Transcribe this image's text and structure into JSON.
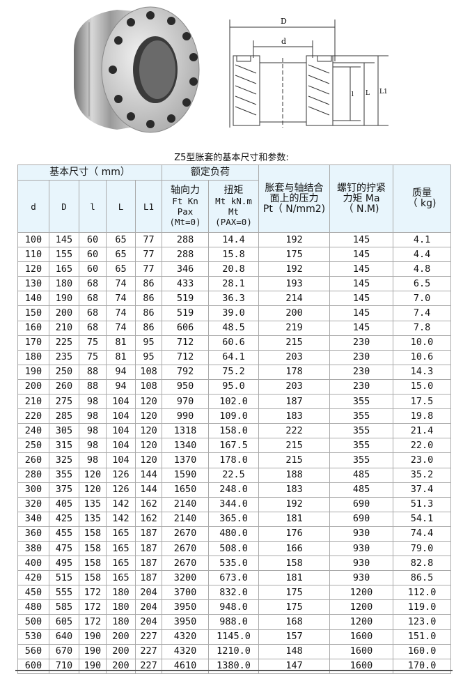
{
  "title": "Z5型胀套的基本尺寸和参数:",
  "drawing_labels": {
    "D": "D",
    "d": "d",
    "l": "l",
    "L": "L",
    "L1": "L1"
  },
  "header": {
    "group_basic": "基本尺寸（ mm）",
    "group_load": "额定负荷",
    "d": "d",
    "D": "D",
    "l": "l",
    "L": "L",
    "L1": "L1",
    "axial_force": [
      "轴向力",
      "Ft Kn",
      "Pax",
      "(Mt=0)"
    ],
    "torque": [
      "扭矩",
      "Mt kN.m",
      "Mt",
      "(PAX=0)"
    ],
    "pressure": [
      "胀套与轴结合",
      "面上的压力",
      "Pt（ N/mm2)"
    ],
    "bolt_torque": [
      "螺钉的拧紧",
      "力矩 Ma",
      "（ N.M)"
    ],
    "mass": [
      "质量",
      "（ kg)"
    ]
  },
  "rows": [
    [
      "100",
      "145",
      "60",
      "65",
      "77",
      "288",
      "14.4",
      "192",
      "145",
      "4.1"
    ],
    [
      "110",
      "155",
      "60",
      "65",
      "77",
      "288",
      "15.8",
      "175",
      "145",
      "4.4"
    ],
    [
      "120",
      "165",
      "60",
      "65",
      "77",
      "346",
      "20.8",
      "192",
      "145",
      "4.8"
    ],
    [
      "130",
      "180",
      "68",
      "74",
      "86",
      "433",
      "28.1",
      "193",
      "145",
      "6.5"
    ],
    [
      "140",
      "190",
      "68",
      "74",
      "86",
      "519",
      "36.3",
      "214",
      "145",
      "7.0"
    ],
    [
      "150",
      "200",
      "68",
      "74",
      "86",
      "519",
      "39.0",
      "200",
      "145",
      "7.4"
    ],
    [
      "160",
      "210",
      "68",
      "74",
      "86",
      "606",
      "48.5",
      "219",
      "145",
      "7.8"
    ],
    [
      "170",
      "225",
      "75",
      "81",
      "95",
      "712",
      "60.6",
      "215",
      "230",
      "10.0"
    ],
    [
      "180",
      "235",
      "75",
      "81",
      "95",
      "712",
      "64.1",
      "203",
      "230",
      "10.6"
    ],
    [
      "190",
      "250",
      "88",
      "94",
      "108",
      "792",
      "75.2",
      "178",
      "230",
      "14.3"
    ],
    [
      "200",
      "260",
      "88",
      "94",
      "108",
      "950",
      "95.0",
      "203",
      "230",
      "15.0"
    ],
    [
      "210",
      "275",
      "98",
      "104",
      "120",
      "970",
      "102.0",
      "187",
      "355",
      "17.5"
    ],
    [
      "220",
      "285",
      "98",
      "104",
      "120",
      "990",
      "109.0",
      "183",
      "355",
      "19.8"
    ],
    [
      "240",
      "305",
      "98",
      "104",
      "120",
      "1318",
      "158.0",
      "222",
      "355",
      "21.4"
    ],
    [
      "250",
      "315",
      "98",
      "104",
      "120",
      "1340",
      "167.5",
      "215",
      "355",
      "22.0"
    ],
    [
      "260",
      "325",
      "98",
      "104",
      "120",
      "1370",
      "178.0",
      "215",
      "355",
      "23.0"
    ],
    [
      "280",
      "355",
      "120",
      "126",
      "144",
      "1590",
      "22.5",
      "188",
      "485",
      "35.2"
    ],
    [
      "300",
      "375",
      "120",
      "126",
      "144",
      "1650",
      "248.0",
      "183",
      "485",
      "37.4"
    ],
    [
      "320",
      "405",
      "135",
      "142",
      "162",
      "2140",
      "344.0",
      "192",
      "690",
      "51.3"
    ],
    [
      "340",
      "425",
      "135",
      "142",
      "162",
      "2140",
      "365.0",
      "181",
      "690",
      "54.1"
    ],
    [
      "360",
      "455",
      "158",
      "165",
      "187",
      "2670",
      "480.0",
      "176",
      "930",
      "74.4"
    ],
    [
      "380",
      "475",
      "158",
      "165",
      "187",
      "2670",
      "508.0",
      "166",
      "930",
      "79.0"
    ],
    [
      "400",
      "495",
      "158",
      "165",
      "187",
      "2670",
      "535.0",
      "158",
      "930",
      "82.8"
    ],
    [
      "420",
      "515",
      "158",
      "165",
      "187",
      "3200",
      "673.0",
      "181",
      "930",
      "86.5"
    ],
    [
      "450",
      "555",
      "172",
      "180",
      "204",
      "3700",
      "832.0",
      "175",
      "1200",
      "112.0"
    ],
    [
      "480",
      "585",
      "172",
      "180",
      "204",
      "3950",
      "948.0",
      "175",
      "1200",
      "119.0"
    ],
    [
      "500",
      "605",
      "172",
      "180",
      "204",
      "3950",
      "988.0",
      "168",
      "1200",
      "123.0"
    ],
    [
      "530",
      "640",
      "190",
      "200",
      "227",
      "4320",
      "1145.0",
      "157",
      "1600",
      "151.0"
    ],
    [
      "560",
      "670",
      "190",
      "200",
      "227",
      "4320",
      "1210.0",
      "148",
      "1600",
      "160.0"
    ],
    [
      "600",
      "710",
      "190",
      "200",
      "227",
      "4610",
      "1380.0",
      "147",
      "1600",
      "170.0"
    ]
  ],
  "colors": {
    "header_bg": "#e8f5fc",
    "border": "#a9a9a9"
  }
}
